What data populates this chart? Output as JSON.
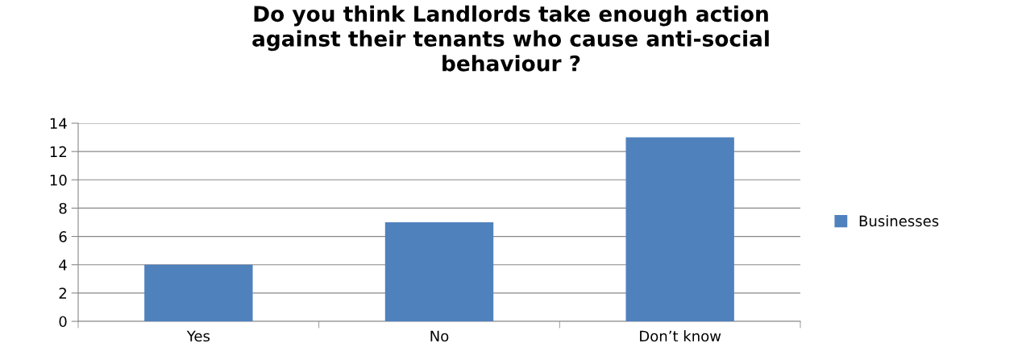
{
  "chart_data": {
    "type": "bar",
    "title": "Do you think Landlords take enough action\nagainst their tenants who cause anti-social\nbehaviour ?",
    "categories": [
      "Yes",
      "No",
      "Don’t know"
    ],
    "series": [
      {
        "name": "Businesses",
        "color": "#4f81bd",
        "values": [
          4,
          7,
          13
        ]
      }
    ],
    "ylim": [
      0,
      14
    ],
    "yticks": [
      0,
      2,
      4,
      6,
      8,
      10,
      12,
      14
    ],
    "grid": "y",
    "legend": "right"
  }
}
